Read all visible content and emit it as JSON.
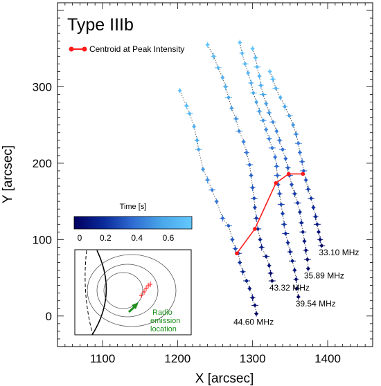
{
  "chart_data": {
    "type": "scatter",
    "title": "Type IIIb",
    "xlabel": "X [arcsec]",
    "ylabel": "Y [arcsec]",
    "xlim": [
      1040,
      1460
    ],
    "ylim": [
      -40,
      410
    ],
    "xticks": [
      1100,
      1200,
      1300,
      1400
    ],
    "yticks": [
      0,
      100,
      200,
      300
    ],
    "grid": false,
    "legend": {
      "label": "Centroid at Peak Intensity",
      "position": "top-left",
      "color": "#ff1a1a"
    },
    "colorbar": {
      "label": "Time [s]",
      "ticks": [
        "0",
        "0.2",
        "0.4",
        "0.6"
      ],
      "tick_values": [
        0,
        0.2,
        0.4,
        0.6
      ],
      "range": [
        0,
        0.75
      ],
      "colors": [
        "#000060",
        "#0a2a9a",
        "#2f6cd2",
        "#4aa8ea",
        "#63c8ff"
      ]
    },
    "series": [
      {
        "name": "44.60 MHz",
        "points": [
          [
            1203,
            295
          ],
          [
            1212,
            275
          ],
          [
            1216,
            265
          ],
          [
            1222,
            248
          ],
          [
            1226,
            230
          ],
          [
            1228,
            218
          ],
          [
            1234,
            192
          ],
          [
            1240,
            178
          ],
          [
            1246,
            165
          ],
          [
            1252,
            150
          ],
          [
            1260,
            128
          ],
          [
            1268,
            118
          ],
          [
            1273,
            100
          ],
          [
            1277,
            88
          ],
          [
            1281,
            82
          ],
          [
            1283,
            70
          ],
          [
            1287,
            58
          ],
          [
            1292,
            46
          ],
          [
            1296,
            36
          ],
          [
            1300,
            24
          ],
          [
            1303,
            14
          ],
          [
            1305,
            3
          ]
        ]
      },
      {
        "name": "43.32 MHz",
        "points": [
          [
            1240,
            355
          ],
          [
            1248,
            340
          ],
          [
            1254,
            325
          ],
          [
            1260,
            312
          ],
          [
            1264,
            300
          ],
          [
            1268,
            286
          ],
          [
            1272,
            272
          ],
          [
            1278,
            258
          ],
          [
            1282,
            242
          ],
          [
            1288,
            228
          ],
          [
            1292,
            214
          ],
          [
            1296,
            198
          ],
          [
            1298,
            184
          ],
          [
            1300,
            168
          ],
          [
            1302,
            154
          ],
          [
            1303,
            142
          ],
          [
            1305,
            128
          ],
          [
            1307,
            114
          ],
          [
            1310,
            100
          ],
          [
            1312,
            90
          ],
          [
            1318,
            78
          ],
          [
            1322,
            66
          ],
          [
            1324,
            56
          ],
          [
            1326,
            46
          ]
        ]
      },
      {
        "name": "39.54 MHz",
        "points": [
          [
            1283,
            358
          ],
          [
            1286,
            344
          ],
          [
            1290,
            330
          ],
          [
            1294,
            318
          ],
          [
            1298,
            305
          ],
          [
            1301,
            292
          ],
          [
            1305,
            280
          ],
          [
            1309,
            268
          ],
          [
            1314,
            256
          ],
          [
            1318,
            244
          ],
          [
            1322,
            232
          ],
          [
            1326,
            220
          ],
          [
            1330,
            208
          ],
          [
            1332,
            196
          ],
          [
            1333,
            184
          ],
          [
            1334,
            172
          ],
          [
            1336,
            160
          ],
          [
            1338,
            146
          ],
          [
            1340,
            134
          ],
          [
            1342,
            120
          ],
          [
            1344,
            108
          ],
          [
            1347,
            96
          ],
          [
            1350,
            84
          ],
          [
            1353,
            72
          ],
          [
            1356,
            60
          ],
          [
            1358,
            48
          ],
          [
            1359,
            36
          ],
          [
            1361,
            25
          ]
        ]
      },
      {
        "name": "35.89 MHz",
        "points": [
          [
            1300,
            350
          ],
          [
            1304,
            338
          ],
          [
            1306,
            326
          ],
          [
            1309,
            314
          ],
          [
            1311,
            302
          ],
          [
            1314,
            290
          ],
          [
            1318,
            278
          ],
          [
            1322,
            266
          ],
          [
            1327,
            254
          ],
          [
            1332,
            242
          ],
          [
            1336,
            230
          ],
          [
            1340,
            218
          ],
          [
            1344,
            206
          ],
          [
            1347,
            194
          ],
          [
            1349,
            184
          ],
          [
            1352,
            172
          ],
          [
            1356,
            160
          ],
          [
            1360,
            148
          ],
          [
            1363,
            136
          ],
          [
            1365,
            122
          ],
          [
            1367,
            110
          ],
          [
            1369,
            98
          ],
          [
            1371,
            86
          ],
          [
            1373,
            74
          ],
          [
            1374,
            62
          ]
        ]
      },
      {
        "name": "33.10 MHz",
        "points": [
          [
            1323,
            320
          ],
          [
            1327,
            310
          ],
          [
            1331,
            298
          ],
          [
            1337,
            286
          ],
          [
            1343,
            274
          ],
          [
            1349,
            262
          ],
          [
            1354,
            250
          ],
          [
            1358,
            238
          ],
          [
            1361,
            226
          ],
          [
            1363,
            214
          ],
          [
            1366,
            202
          ],
          [
            1368,
            190
          ],
          [
            1371,
            178
          ],
          [
            1374,
            166
          ],
          [
            1378,
            154
          ],
          [
            1381,
            142
          ],
          [
            1384,
            130
          ],
          [
            1386,
            120
          ],
          [
            1388,
            110
          ],
          [
            1390,
            100
          ],
          [
            1392,
            92
          ]
        ]
      }
    ],
    "centroid_track": [
      [
        1279,
        82
      ],
      [
        1303,
        114
      ],
      [
        1331,
        174
      ],
      [
        1348,
        186
      ],
      [
        1367,
        186
      ]
    ],
    "inset": {
      "label_line1": "Radio",
      "label_line2": "emission",
      "label_line3": "location",
      "label_color": "#1f8f1f"
    }
  }
}
